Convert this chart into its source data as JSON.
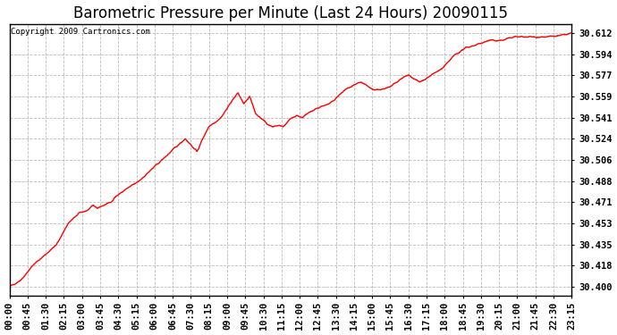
{
  "title": "Barometric Pressure per Minute (Last 24 Hours) 20090115",
  "copyright": "Copyright 2009 Cartronics.com",
  "line_color": "#ff0000",
  "background_color": "#ffffff",
  "plot_bg_color": "#ffffff",
  "grid_color": "#aaaaaa",
  "yticks": [
    30.4,
    30.418,
    30.435,
    30.453,
    30.471,
    30.488,
    30.506,
    30.524,
    30.541,
    30.559,
    30.577,
    30.594,
    30.612
  ],
  "ylim": [
    30.393,
    30.62
  ],
  "xtick_labels": [
    "00:00",
    "00:45",
    "01:30",
    "02:15",
    "03:00",
    "03:45",
    "04:30",
    "05:15",
    "06:00",
    "06:45",
    "07:30",
    "08:15",
    "09:00",
    "09:45",
    "10:30",
    "11:15",
    "12:00",
    "12:45",
    "13:30",
    "14:15",
    "15:00",
    "15:45",
    "16:30",
    "17:15",
    "18:00",
    "18:45",
    "19:30",
    "20:15",
    "21:00",
    "21:45",
    "22:30",
    "23:15"
  ],
  "title_fontsize": 12,
  "copyright_fontsize": 6.5,
  "tick_fontsize": 7.5,
  "line_width": 1.0,
  "ctrl_t": [
    0,
    30,
    60,
    120,
    150,
    180,
    200,
    215,
    225,
    240,
    260,
    270,
    300,
    330,
    360,
    390,
    420,
    450,
    480,
    495,
    510,
    540,
    555,
    570,
    585,
    600,
    615,
    630,
    645,
    660,
    675,
    690,
    700,
    710,
    720,
    735,
    750,
    765,
    780,
    800,
    820,
    840,
    860,
    900,
    930,
    960,
    990,
    1020,
    1050,
    1080,
    1110,
    1140,
    1170,
    1200,
    1230,
    1260,
    1290,
    1320,
    1350,
    1380,
    1410,
    1439
  ],
  "ctrl_v": [
    30.4,
    30.406,
    30.418,
    30.435,
    30.453,
    30.462,
    30.464,
    30.468,
    30.466,
    30.468,
    30.471,
    30.475,
    30.482,
    30.488,
    30.497,
    30.506,
    30.515,
    30.524,
    30.513,
    30.524,
    30.534,
    30.541,
    30.548,
    30.556,
    30.562,
    30.553,
    30.559,
    30.545,
    30.541,
    30.536,
    30.534,
    30.535,
    30.534,
    30.537,
    30.541,
    30.543,
    30.542,
    30.545,
    30.548,
    30.551,
    30.553,
    30.559,
    30.565,
    30.571,
    30.565,
    30.565,
    30.571,
    30.577,
    30.571,
    30.577,
    30.583,
    30.594,
    30.6,
    30.603,
    30.606,
    30.606,
    30.609,
    30.609,
    30.609,
    30.609,
    30.61,
    30.612
  ]
}
